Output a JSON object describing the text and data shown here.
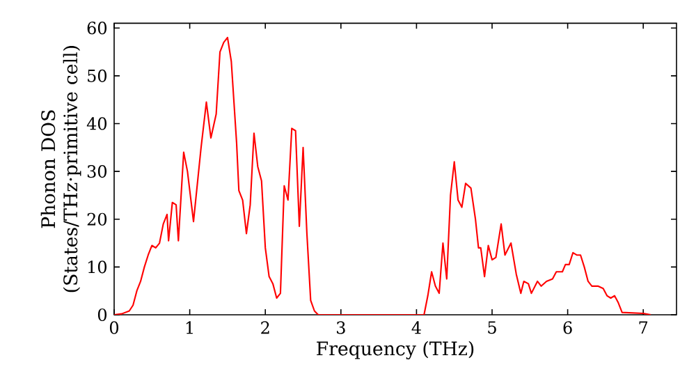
{
  "chart_data": {
    "type": "line",
    "xlabel": "Frequency (THz)",
    "ylabel": "Phonon DOS (States/THz·primitive cell)",
    "xlim": [
      0,
      7.44
    ],
    "ylim": [
      0,
      61
    ],
    "xticks": [
      0,
      1,
      2,
      3,
      4,
      5,
      6,
      7
    ],
    "yticks": [
      0,
      10,
      20,
      30,
      40,
      50,
      60
    ],
    "grid": false,
    "marker": "none",
    "line_style": "solid",
    "series": [
      {
        "color": "#ff0000",
        "x": [
          0,
          0.1,
          0.2,
          0.25,
          0.3,
          0.35,
          0.4,
          0.45,
          0.5,
          0.55,
          0.6,
          0.65,
          0.7,
          0.72,
          0.77,
          0.82,
          0.85,
          0.92,
          0.97,
          1.05,
          1.15,
          1.22,
          1.28,
          1.35,
          1.4,
          1.45,
          1.5,
          1.55,
          1.62,
          1.65,
          1.7,
          1.75,
          1.8,
          1.85,
          1.9,
          1.95,
          2.0,
          2.05,
          2.1,
          2.15,
          2.2,
          2.25,
          2.3,
          2.35,
          2.4,
          2.45,
          2.5,
          2.55,
          2.6,
          2.65,
          2.7,
          4.1,
          4.15,
          4.2,
          4.25,
          4.3,
          4.35,
          4.4,
          4.45,
          4.5,
          4.55,
          4.6,
          4.65,
          4.72,
          4.78,
          4.82,
          4.85,
          4.9,
          4.95,
          5.0,
          5.05,
          5.12,
          5.17,
          5.25,
          5.32,
          5.38,
          5.42,
          5.48,
          5.52,
          5.6,
          5.65,
          5.72,
          5.8,
          5.85,
          5.93,
          5.97,
          6.02,
          6.07,
          6.12,
          6.17,
          6.22,
          6.27,
          6.32,
          6.4,
          6.47,
          6.52,
          6.57,
          6.62,
          6.67,
          6.72,
          7.0,
          7.1
        ],
        "values": [
          0,
          0.2,
          0.8,
          2,
          5,
          7,
          10,
          12.5,
          14.5,
          14,
          15,
          19,
          21,
          15.5,
          23.5,
          23,
          15.5,
          34,
          30,
          19.5,
          35,
          44.5,
          37,
          42,
          55,
          57,
          58,
          53,
          36,
          26,
          24,
          17,
          23,
          38,
          31,
          28,
          14,
          8,
          6.5,
          3.5,
          4.5,
          27,
          24,
          39,
          38.5,
          18.5,
          35,
          17,
          3,
          0.8,
          0,
          0,
          4,
          9,
          6,
          4.5,
          15,
          7.5,
          25,
          32,
          24,
          22.5,
          27.5,
          26.5,
          20,
          14,
          14,
          8,
          14.5,
          11.5,
          12,
          19,
          12.5,
          15,
          8.5,
          4.5,
          7,
          6.5,
          4.5,
          7,
          6,
          7,
          7.5,
          9,
          9,
          10.5,
          10.5,
          13,
          12.5,
          12.5,
          10,
          7,
          6,
          6,
          5.5,
          4,
          3.5,
          4,
          2.5,
          0.5,
          0.3,
          0
        ]
      }
    ]
  }
}
